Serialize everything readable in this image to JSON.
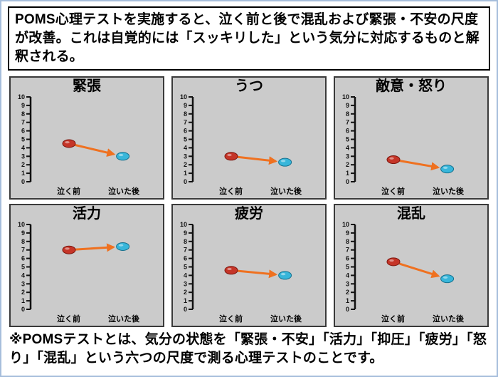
{
  "header": {
    "text": "POMS心理テストを実施すると、泣く前と後で混乱および緊張・不安の尺度が改善。これは自覚的には「スッキリした」という気分に対応するものと解釈される。"
  },
  "footer": {
    "text": "※POMSテストとは、気分の状態を「緊張・不安」「活力」「抑圧」「疲労」「怒り」「混乱」という六つの尺度で測る心理テストのことです。"
  },
  "colors": {
    "before_dot": "#c53528",
    "before_dot_edge": "#7c160e",
    "after_dot": "#38b6da",
    "after_dot_edge": "#14718f",
    "arrow": "#ef7120",
    "chart_bg": "#cbcbcb"
  },
  "chart_data": [
    {
      "type": "scatter",
      "title": "緊張",
      "categories": [
        "泣く前",
        "泣いた後"
      ],
      "values": [
        4.5,
        3.0
      ],
      "ylim": [
        0,
        10
      ]
    },
    {
      "type": "scatter",
      "title": "うつ",
      "categories": [
        "泣く前",
        "泣いた後"
      ],
      "values": [
        3.0,
        2.3
      ],
      "ylim": [
        0,
        10
      ]
    },
    {
      "type": "scatter",
      "title": "敵意・怒り",
      "categories": [
        "泣く前",
        "泣いた後"
      ],
      "values": [
        2.6,
        1.5
      ],
      "ylim": [
        0,
        10
      ]
    },
    {
      "type": "scatter",
      "title": "活力",
      "categories": [
        "泣く前",
        "泣いた後"
      ],
      "values": [
        7.0,
        7.4
      ],
      "ylim": [
        0,
        10
      ]
    },
    {
      "type": "scatter",
      "title": "疲労",
      "categories": [
        "泣く前",
        "泣いた後"
      ],
      "values": [
        4.6,
        4.0
      ],
      "ylim": [
        0,
        10
      ]
    },
    {
      "type": "scatter",
      "title": "混乱",
      "categories": [
        "泣く前",
        "泣いた後"
      ],
      "values": [
        5.6,
        3.6
      ],
      "ylim": [
        0,
        10
      ]
    }
  ]
}
